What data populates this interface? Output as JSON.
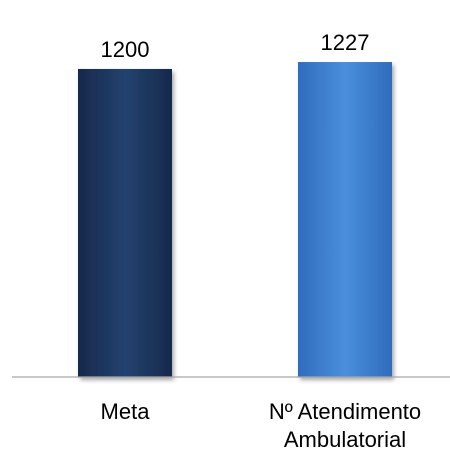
{
  "chart_data": {
    "type": "bar",
    "categories": [
      "Meta",
      "Nº Atendimento Ambulatorial"
    ],
    "category_lines": [
      [
        "Meta"
      ],
      [
        "Nº Atendimento",
        "Ambulatorial"
      ]
    ],
    "values": [
      1200,
      1227
    ],
    "data_labels": [
      "1200",
      "1227"
    ],
    "bar_colors": [
      "#1f3b66",
      "#3b7fd0"
    ],
    "grid": false,
    "legend": "none"
  }
}
